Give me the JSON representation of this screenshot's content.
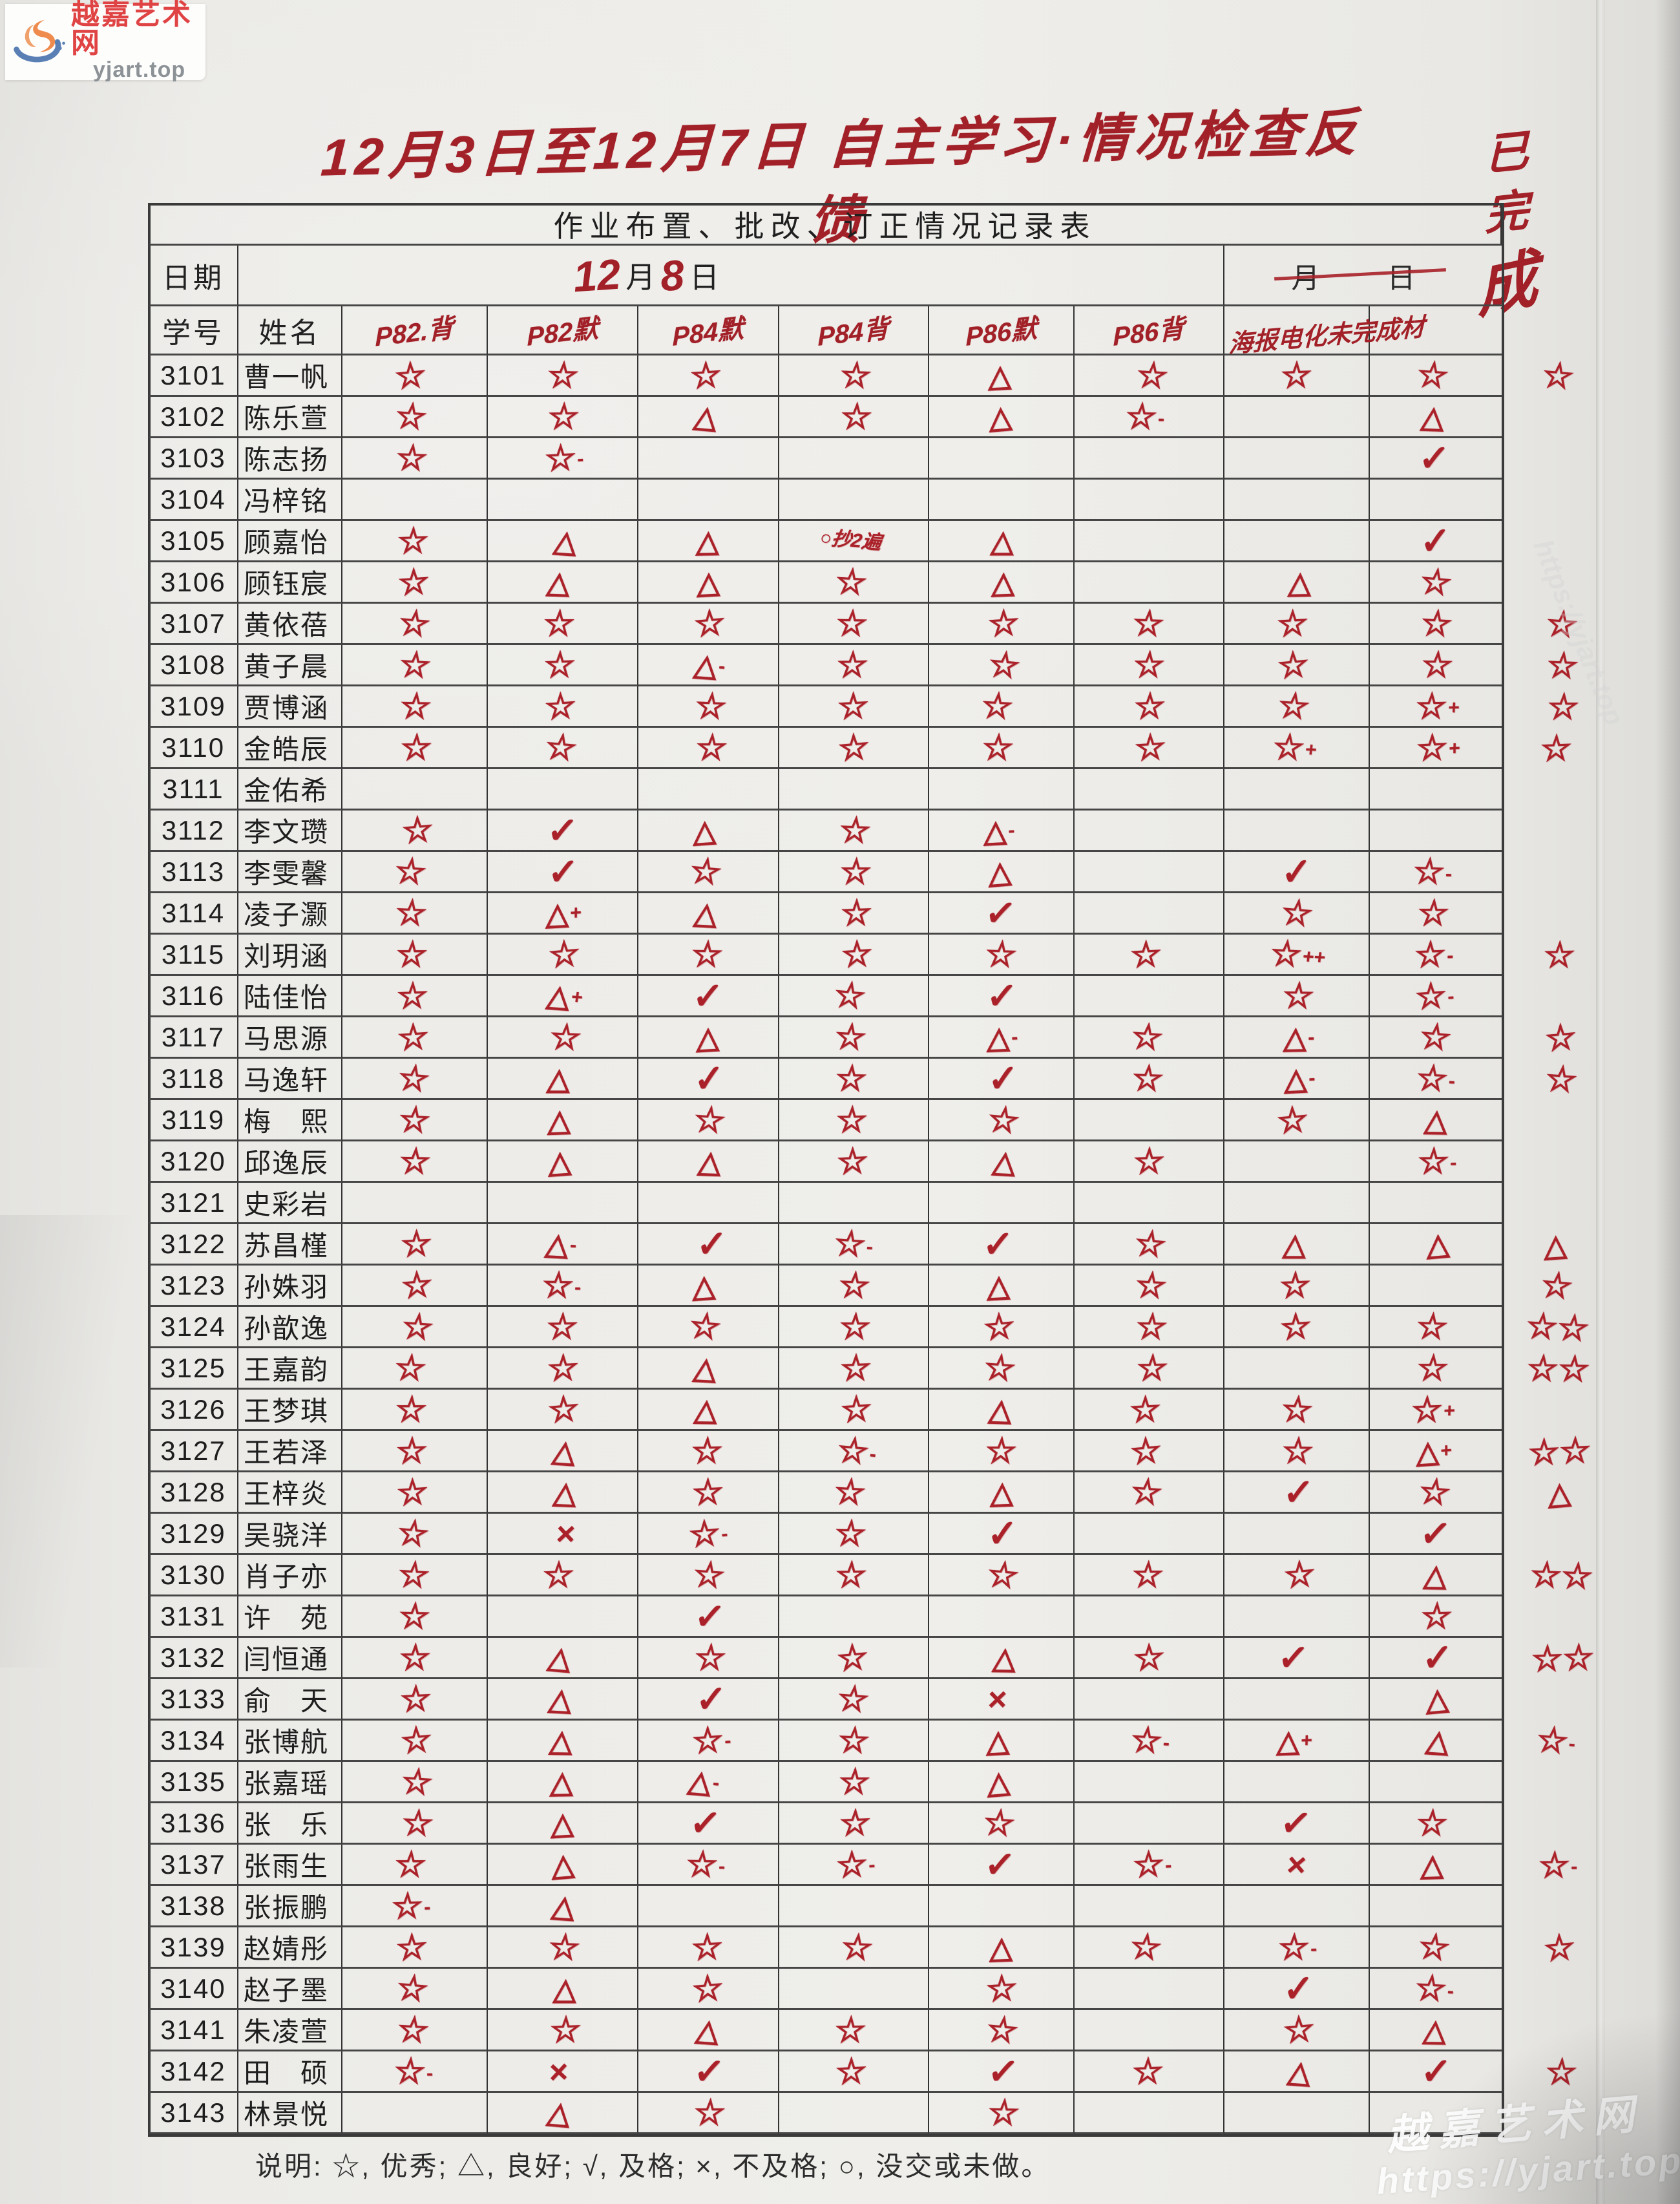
{
  "watermark_logo": {
    "site_name": "越嘉艺术网",
    "site_url": "yjart.top"
  },
  "handwritten_title": "12月3日至12月7日 自主学习·情况检查反馈",
  "margin_note": {
    "chars": [
      "已",
      "完",
      "成"
    ]
  },
  "ink_color": "#ab2129",
  "table": {
    "caption": "作业布置、批改、订正情况记录表",
    "date_row": {
      "label": "日期",
      "month_num": "12",
      "month_char": "月",
      "day_num": "8",
      "day_char": "日",
      "right_label": "月　日"
    },
    "header": {
      "id": "学号",
      "name": "姓名",
      "assignments": [
        "P82.背",
        "P82默",
        "P84默",
        "P84背",
        "P86默",
        "P86背"
      ],
      "wide_label": "海报电化未完成材"
    },
    "rows": [
      {
        "id": "3101",
        "name": "曹一帆",
        "marks": [
          "☆",
          "☆",
          "☆",
          "☆",
          "△",
          "☆",
          "☆",
          "☆"
        ],
        "margin": "☆"
      },
      {
        "id": "3102",
        "name": "陈乐萱",
        "marks": [
          "☆",
          "☆",
          "△",
          "☆",
          "△",
          "☆-",
          "",
          "△"
        ],
        "margin": ""
      },
      {
        "id": "3103",
        "name": "陈志扬",
        "marks": [
          "☆",
          "☆-",
          "",
          "",
          "",
          "",
          "",
          "✓"
        ],
        "margin": ""
      },
      {
        "id": "3104",
        "name": "冯梓铭",
        "marks": [
          "",
          "",
          "",
          "",
          "",
          "",
          "",
          ""
        ],
        "margin": ""
      },
      {
        "id": "3105",
        "name": "顾嘉怡",
        "marks": [
          "☆",
          "△",
          "△",
          "○抄2遍",
          "△",
          "",
          "",
          "✓"
        ],
        "margin": ""
      },
      {
        "id": "3106",
        "name": "顾钰宸",
        "marks": [
          "☆",
          "△",
          "△",
          "☆",
          "△",
          "",
          "△",
          "☆"
        ],
        "margin": ""
      },
      {
        "id": "3107",
        "name": "黄依蓓",
        "marks": [
          "☆",
          "☆",
          "☆",
          "☆",
          "☆",
          "☆",
          "☆",
          "☆"
        ],
        "margin": "☆"
      },
      {
        "id": "3108",
        "name": "黄子晨",
        "marks": [
          "☆",
          "☆",
          "△-",
          "☆",
          "☆",
          "☆",
          "☆",
          "☆"
        ],
        "margin": "☆"
      },
      {
        "id": "3109",
        "name": "贾博涵",
        "marks": [
          "☆",
          "☆",
          "☆",
          "☆",
          "☆",
          "☆",
          "☆",
          "☆+"
        ],
        "margin": "☆"
      },
      {
        "id": "3110",
        "name": "金皓辰",
        "marks": [
          "☆",
          "☆",
          "☆",
          "☆",
          "☆",
          "☆",
          "☆+",
          "☆+"
        ],
        "margin": "☆"
      },
      {
        "id": "3111",
        "name": "金佑希",
        "marks": [
          "",
          "",
          "",
          "",
          "",
          "",
          "",
          ""
        ],
        "margin": ""
      },
      {
        "id": "3112",
        "name": "李文瓒",
        "marks": [
          "☆",
          "✓",
          "△",
          "☆",
          "△-",
          "",
          "",
          ""
        ],
        "margin": ""
      },
      {
        "id": "3113",
        "name": "李雯馨",
        "marks": [
          "☆",
          "✓",
          "☆",
          "☆",
          "△",
          "",
          "✓",
          "☆-"
        ],
        "margin": ""
      },
      {
        "id": "3114",
        "name": "凌子灏",
        "marks": [
          "☆",
          "△+",
          "△",
          "☆",
          "✓",
          "",
          "☆",
          "☆"
        ],
        "margin": ""
      },
      {
        "id": "3115",
        "name": "刘玥涵",
        "marks": [
          "☆",
          "☆",
          "☆",
          "☆",
          "☆",
          "☆",
          "☆++",
          "☆-"
        ],
        "margin": "☆"
      },
      {
        "id": "3116",
        "name": "陆佳怡",
        "marks": [
          "☆",
          "△+",
          "✓",
          "☆",
          "✓",
          "",
          "☆",
          "☆-"
        ],
        "margin": ""
      },
      {
        "id": "3117",
        "name": "马思源",
        "marks": [
          "☆",
          "☆",
          "△",
          "☆",
          "△-",
          "☆",
          "△-",
          "☆"
        ],
        "margin": "☆"
      },
      {
        "id": "3118",
        "name": "马逸轩",
        "marks": [
          "☆",
          "△",
          "✓",
          "☆",
          "✓",
          "☆",
          "△-",
          "☆-"
        ],
        "margin": "☆"
      },
      {
        "id": "3119",
        "name": "梅　熙",
        "marks": [
          "☆",
          "△",
          "☆",
          "☆",
          "☆",
          "",
          "☆",
          "△"
        ],
        "margin": ""
      },
      {
        "id": "3120",
        "name": "邱逸辰",
        "marks": [
          "☆",
          "△",
          "△",
          "☆",
          "△",
          "☆",
          "",
          "☆-"
        ],
        "margin": ""
      },
      {
        "id": "3121",
        "name": "史彩岩",
        "marks": [
          "",
          "",
          "",
          "",
          "",
          "",
          "",
          ""
        ],
        "margin": ""
      },
      {
        "id": "3122",
        "name": "苏昌槿",
        "marks": [
          "☆",
          "△-",
          "✓",
          "☆-",
          "✓",
          "☆",
          "△",
          "△"
        ],
        "margin": "△"
      },
      {
        "id": "3123",
        "name": "孙姝羽",
        "marks": [
          "☆",
          "☆-",
          "△",
          "☆",
          "△",
          "☆",
          "☆",
          ""
        ],
        "margin": "☆"
      },
      {
        "id": "3124",
        "name": "孙歆逸",
        "marks": [
          "☆",
          "☆",
          "☆",
          "☆",
          "☆",
          "☆",
          "☆",
          "☆"
        ],
        "margin": "☆☆"
      },
      {
        "id": "3125",
        "name": "王嘉韵",
        "marks": [
          "☆",
          "☆",
          "△",
          "☆",
          "☆",
          "☆",
          "",
          "☆"
        ],
        "margin": "☆☆"
      },
      {
        "id": "3126",
        "name": "王梦琪",
        "marks": [
          "☆",
          "☆",
          "△",
          "☆",
          "△",
          "☆",
          "☆",
          "☆+"
        ],
        "margin": ""
      },
      {
        "id": "3127",
        "name": "王若泽",
        "marks": [
          "☆",
          "△",
          "☆",
          "☆-",
          "☆",
          "☆",
          "☆",
          "△+"
        ],
        "margin": "☆☆"
      },
      {
        "id": "3128",
        "name": "王梓炎",
        "marks": [
          "☆",
          "△",
          "☆",
          "☆",
          "△",
          "☆",
          "✓",
          "☆"
        ],
        "margin": "△"
      },
      {
        "id": "3129",
        "name": "吴骁洋",
        "marks": [
          "☆",
          "×",
          "☆-",
          "☆",
          "✓",
          "",
          "",
          "✓"
        ],
        "margin": ""
      },
      {
        "id": "3130",
        "name": "肖子亦",
        "marks": [
          "☆",
          "☆",
          "☆",
          "☆",
          "☆",
          "☆",
          "☆",
          "△"
        ],
        "margin": "☆☆"
      },
      {
        "id": "3131",
        "name": "许　苑",
        "marks": [
          "☆",
          "",
          "✓",
          "",
          "",
          "",
          "",
          "☆"
        ],
        "margin": ""
      },
      {
        "id": "3132",
        "name": "闫恒通",
        "marks": [
          "☆",
          "△",
          "☆",
          "☆",
          "△",
          "☆",
          "✓",
          "✓"
        ],
        "margin": "☆☆"
      },
      {
        "id": "3133",
        "name": "俞　天",
        "marks": [
          "☆",
          "△",
          "✓",
          "☆",
          "×",
          "",
          "",
          "△"
        ],
        "margin": ""
      },
      {
        "id": "3134",
        "name": "张博航",
        "marks": [
          "☆",
          "△",
          "☆-",
          "☆",
          "△",
          "☆-",
          "△+",
          "△"
        ],
        "margin": "☆-"
      },
      {
        "id": "3135",
        "name": "张嘉瑶",
        "marks": [
          "☆",
          "△",
          "△-",
          "☆",
          "△",
          "",
          "",
          ""
        ],
        "margin": ""
      },
      {
        "id": "3136",
        "name": "张　乐",
        "marks": [
          "☆",
          "△",
          "✓",
          "☆",
          "☆",
          "",
          "✓",
          "☆"
        ],
        "margin": ""
      },
      {
        "id": "3137",
        "name": "张雨生",
        "marks": [
          "☆",
          "△",
          "☆-",
          "☆-",
          "✓",
          "☆-",
          "×",
          "△"
        ],
        "margin": "☆-"
      },
      {
        "id": "3138",
        "name": "张振鹏",
        "marks": [
          "☆-",
          "△",
          "",
          "",
          "",
          "",
          "",
          ""
        ],
        "margin": ""
      },
      {
        "id": "3139",
        "name": "赵婧彤",
        "marks": [
          "☆",
          "☆",
          "☆",
          "☆",
          "△",
          "☆",
          "☆-",
          "☆"
        ],
        "margin": "☆"
      },
      {
        "id": "3140",
        "name": "赵子墨",
        "marks": [
          "☆",
          "△",
          "☆",
          "",
          "☆",
          "",
          "✓",
          "☆-"
        ],
        "margin": ""
      },
      {
        "id": "3141",
        "name": "朱凌萱",
        "marks": [
          "☆",
          "☆",
          "△",
          "☆",
          "☆",
          "",
          "☆",
          "△"
        ],
        "margin": ""
      },
      {
        "id": "3142",
        "name": "田　硕",
        "marks": [
          "☆-",
          "×",
          "✓",
          "☆",
          "✓",
          "☆",
          "△",
          "✓"
        ],
        "margin": "☆"
      },
      {
        "id": "3143",
        "name": "林景悦",
        "marks": [
          "",
          "△",
          "☆",
          "",
          "☆",
          "",
          "",
          ""
        ],
        "margin": ""
      }
    ],
    "legend": "说明: ☆, 优秀; △, 良好; √, 及格; ×, 不及格; ○, 没交或未做。"
  },
  "footer_watermark": {
    "site_name": "越嘉艺术网",
    "site_url": "https://yjart.top"
  },
  "side_watermark": "https://yjart.top"
}
